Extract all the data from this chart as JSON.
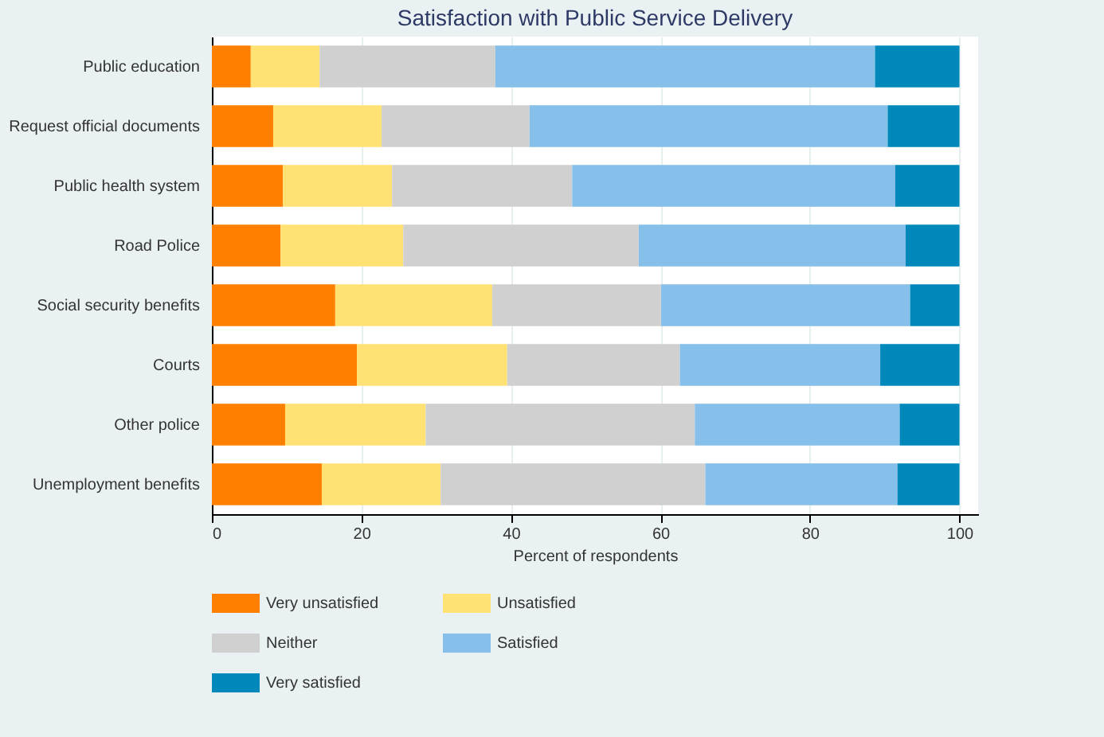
{
  "chart_data": {
    "type": "bar",
    "orientation": "horizontal",
    "stacked": true,
    "title": "Satisfaction with Public Service Delivery",
    "xlabel": "Percent of respondents",
    "categories": [
      "Public education",
      "Request official documents",
      "Public health system",
      "Road Police",
      "Social security benefits",
      "Courts",
      "Other police",
      "Unemployment benefits"
    ],
    "series": [
      {
        "name": "Very unsatisfied",
        "color": "#ff7f00",
        "values": [
          5.2,
          8.2,
          9.5,
          9.2,
          16.5,
          19.4,
          9.8,
          14.7
        ]
      },
      {
        "name": "Unsatisfied",
        "color": "#ffe174",
        "values": [
          9.2,
          14.5,
          14.6,
          16.4,
          21.0,
          20.1,
          18.8,
          15.9
        ]
      },
      {
        "name": "Neither",
        "color": "#d0d0d0",
        "values": [
          23.5,
          19.8,
          24.1,
          31.5,
          22.6,
          23.1,
          36.0,
          35.4
        ]
      },
      {
        "name": "Satisfied",
        "color": "#85bfea",
        "values": [
          50.8,
          47.9,
          43.2,
          35.7,
          33.3,
          26.8,
          27.4,
          25.7
        ]
      },
      {
        "name": "Very satisfied",
        "color": "#0088bb",
        "values": [
          11.3,
          9.6,
          8.6,
          7.2,
          6.6,
          10.6,
          8.0,
          8.3
        ]
      }
    ],
    "xlim": [
      0,
      102.5
    ],
    "xticks": [
      0,
      20,
      40,
      60,
      80,
      100
    ],
    "grid": "x",
    "legend": "bottom"
  }
}
